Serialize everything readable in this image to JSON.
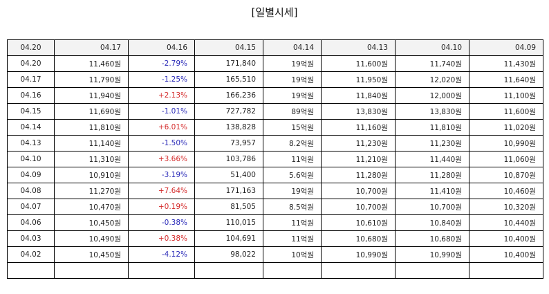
{
  "title": "[일별시세]",
  "header": [
    "04.20",
    "04.17",
    "04.16",
    "04.15",
    "04.14",
    "04.13",
    "04.10",
    "04.09"
  ],
  "rows": [
    [
      "04.20",
      "11,460원",
      "-2.79%",
      "171,840",
      "19억원",
      "11,600원",
      "11,740원",
      "11,430원"
    ],
    [
      "04.17",
      "11,790원",
      "-1.25%",
      "165,510",
      "19억원",
      "11,950원",
      "12,020원",
      "11,640원"
    ],
    [
      "04.16",
      "11,940원",
      "+2.13%",
      "166,236",
      "19억원",
      "11,840원",
      "12,000원",
      "11,100원"
    ],
    [
      "04.15",
      "11,690원",
      "-1.01%",
      "727,782",
      "89억원",
      "13,830원",
      "13,830원",
      "11,600원"
    ],
    [
      "04.14",
      "11,810원",
      "+6.01%",
      "138,828",
      "15억원",
      "11,160원",
      "11,810원",
      "11,020원"
    ],
    [
      "04.13",
      "11,140원",
      "-1.50%",
      "73,957",
      "8.2억원",
      "11,230원",
      "11,230원",
      "10,990원"
    ],
    [
      "04.10",
      "11,310원",
      "+3.66%",
      "103,786",
      "11억원",
      "11,210원",
      "11,440원",
      "11,060원"
    ],
    [
      "04.09",
      "10,910원",
      "-3.19%",
      "51,400",
      "5.6억원",
      "11,280원",
      "11,280원",
      "10,870원"
    ],
    [
      "04.08",
      "11,270원",
      "+7.64%",
      "171,163",
      "19억원",
      "10,700원",
      "11,410원",
      "10,460원"
    ],
    [
      "04.07",
      "10,470원",
      "+0.19%",
      "81,505",
      "8.5억원",
      "10,700원",
      "10,700원",
      "10,320원"
    ],
    [
      "04.06",
      "10,450원",
      "-0.38%",
      "110,015",
      "11억원",
      "10,610원",
      "10,840원",
      "10,440원"
    ],
    [
      "04.03",
      "10,490원",
      "+0.38%",
      "104,691",
      "11억원",
      "10,680원",
      "10,680원",
      "10,400원"
    ],
    [
      "04.02",
      "10,450원",
      "-4.12%",
      "98,022",
      "10억원",
      "10,990원",
      "10,990원",
      "10,400원"
    ],
    [
      "",
      "",
      "",
      "",
      "",
      "",
      "",
      ""
    ]
  ],
  "colors": {
    "up": "#d42a2a",
    "down": "#2a2ab8",
    "header_bg": "#f3f3f3",
    "border": "#000000"
  }
}
